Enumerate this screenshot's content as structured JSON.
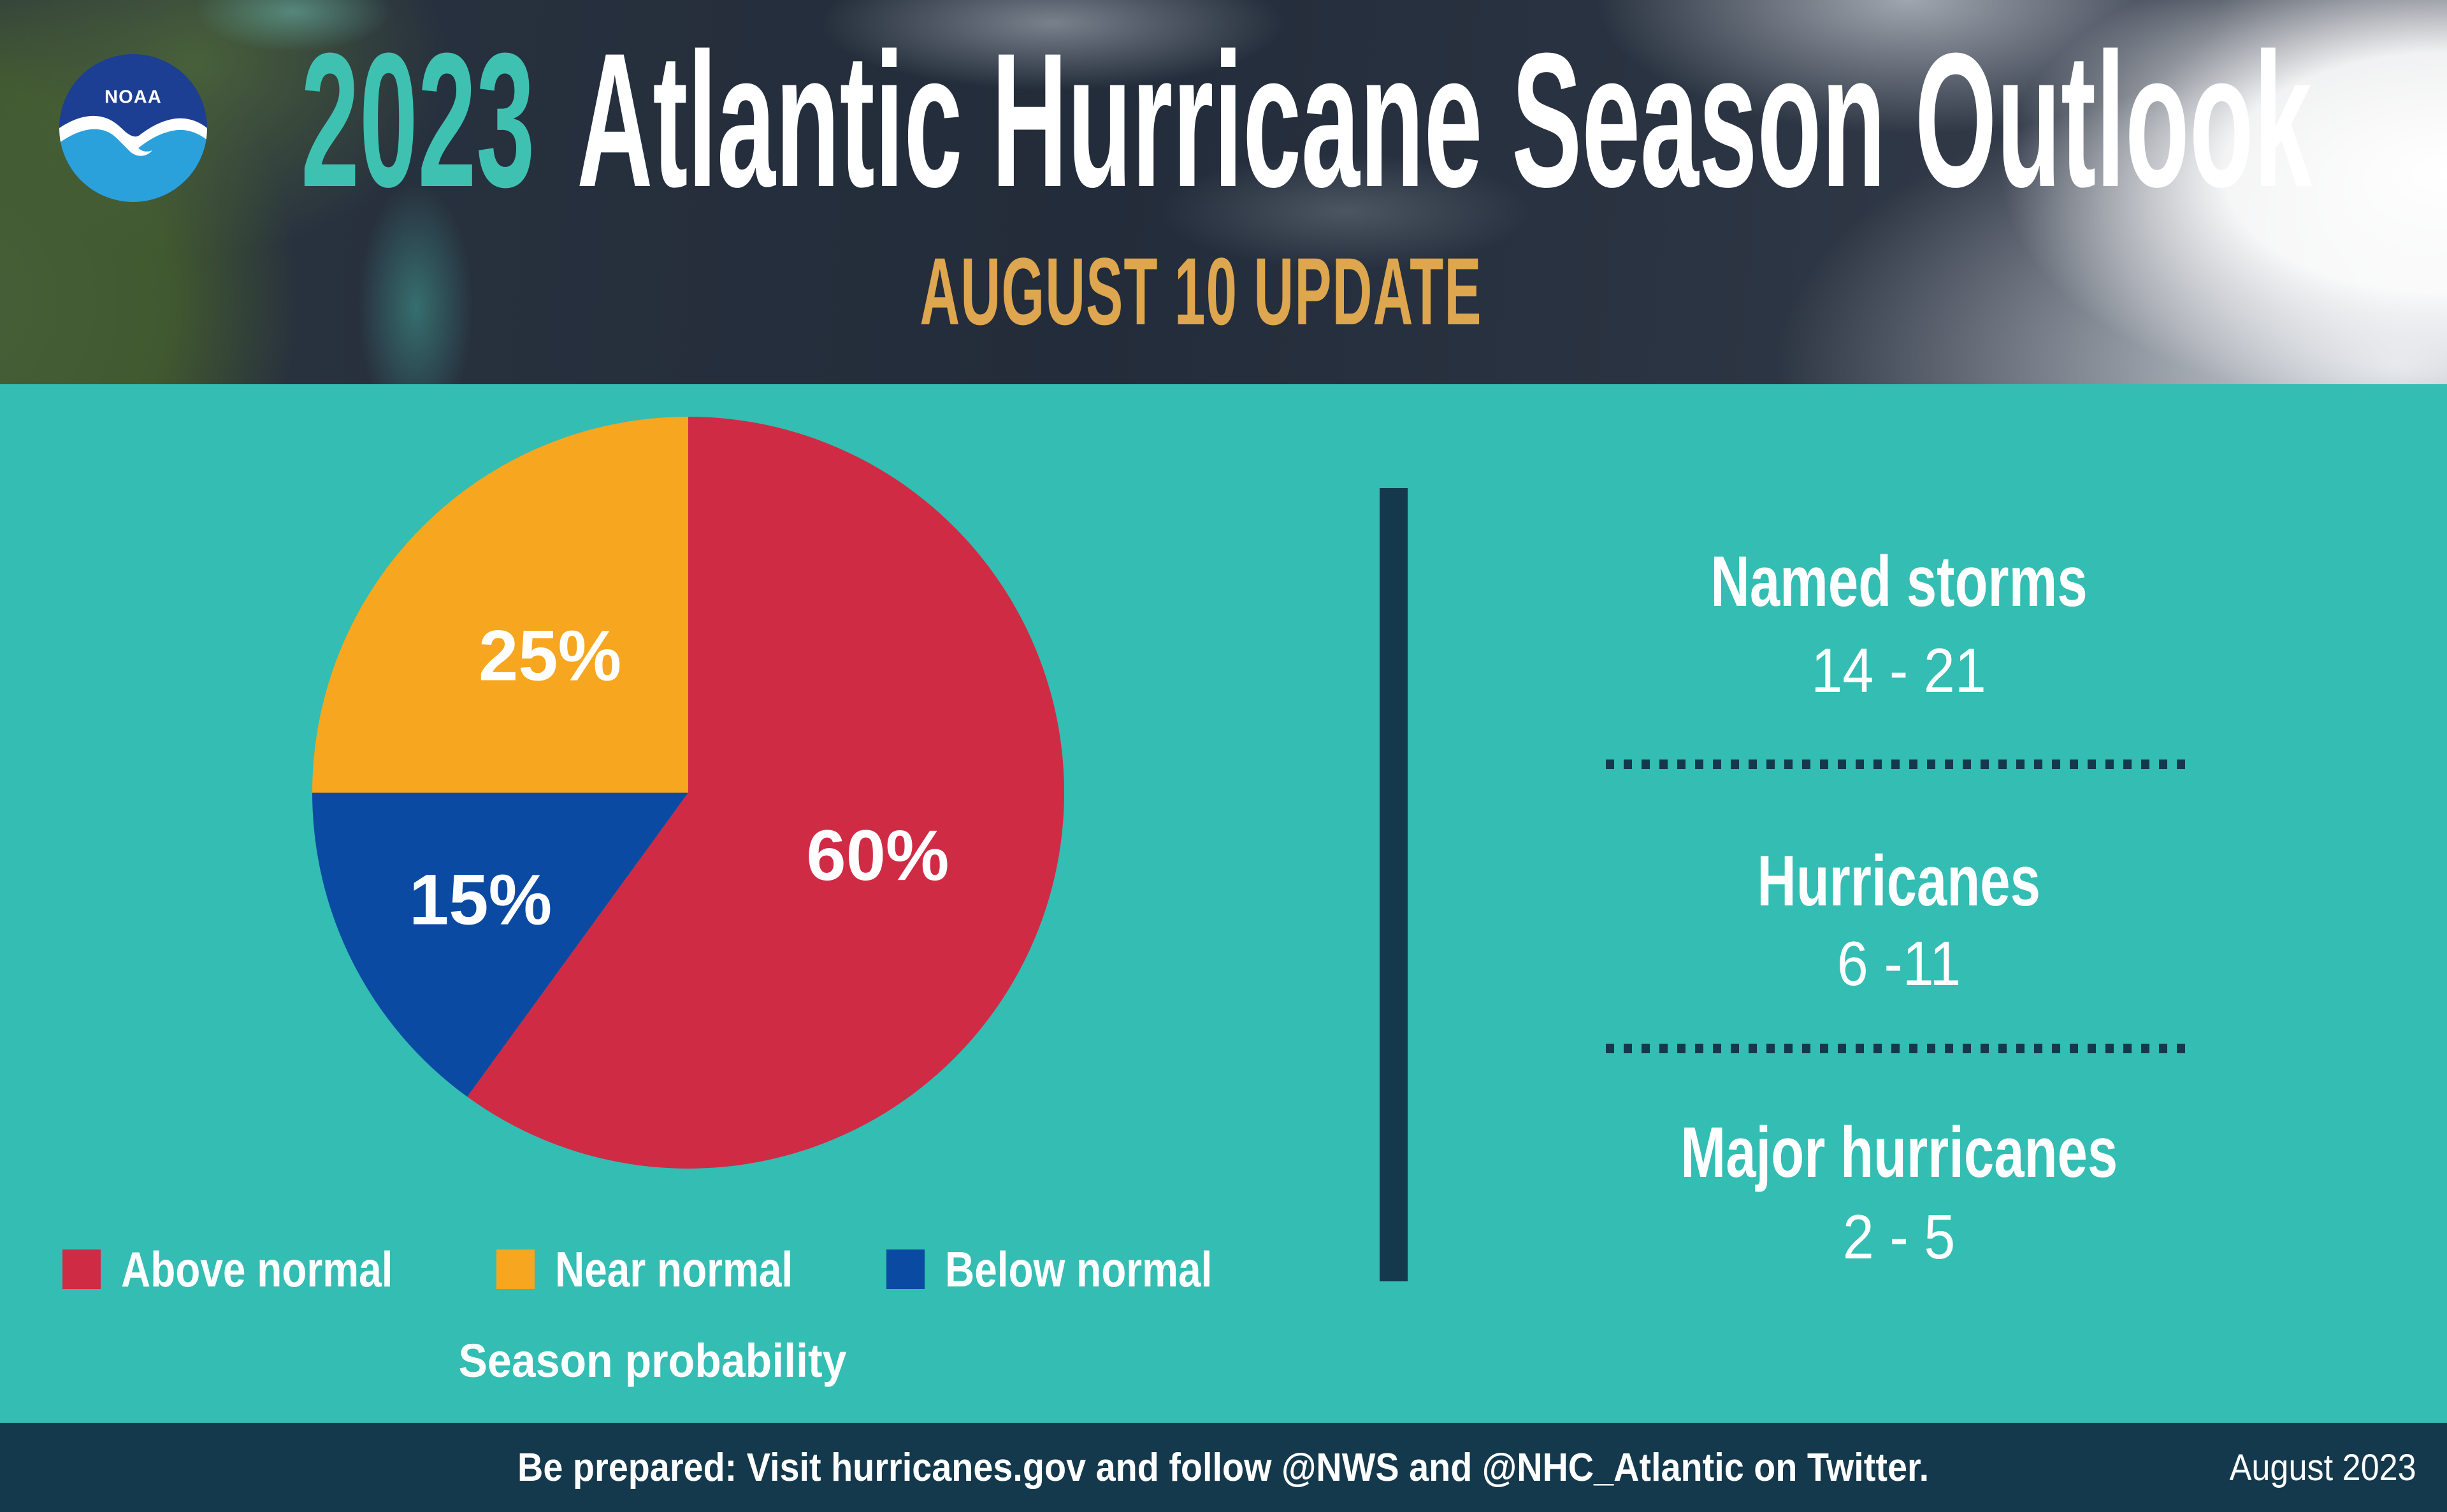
{
  "header": {
    "logo_text": "NOAA",
    "title_year": "2023",
    "title_rest": "Atlantic Hurricane Season Outlook",
    "subtitle": "AUGUST 10 UPDATE"
  },
  "chart_data": {
    "type": "pie",
    "title": "Season probability",
    "start_angle_deg": 0,
    "direction": "clockwise",
    "legend_position": "bottom",
    "slices": [
      {
        "label": "Above normal",
        "value": 60,
        "display": "60%",
        "color": "#D02B45",
        "label_radius": 0.53
      },
      {
        "label": "Below normal",
        "value": 15,
        "display": "15%",
        "color": "#0B4AA2",
        "label_radius": 0.62
      },
      {
        "label": "Near normal",
        "value": 25,
        "display": "25%",
        "color": "#F6A61F",
        "label_radius": 0.52
      }
    ],
    "legend_order": [
      "Above normal",
      "Near normal",
      "Below normal"
    ]
  },
  "stats": {
    "items": [
      {
        "label": "Named storms",
        "range": "14 - 21"
      },
      {
        "label": "Hurricanes",
        "range": "6 -11"
      },
      {
        "label": "Major hurricanes",
        "range": "2 - 5"
      }
    ]
  },
  "footer": {
    "message": "Be prepared: Visit hurricanes.gov and follow @NWS and @NHC_Atlantic on Twitter.",
    "date": "August 2023"
  },
  "colors": {
    "teal_background": "#33BDB3",
    "accent_teal": "#3FC1B2",
    "gold": "#DDA64F",
    "navy": "#14384C",
    "above_normal_red": "#D02B45",
    "near_normal_orange": "#F6A61F",
    "below_normal_blue": "#0B4AA2"
  }
}
